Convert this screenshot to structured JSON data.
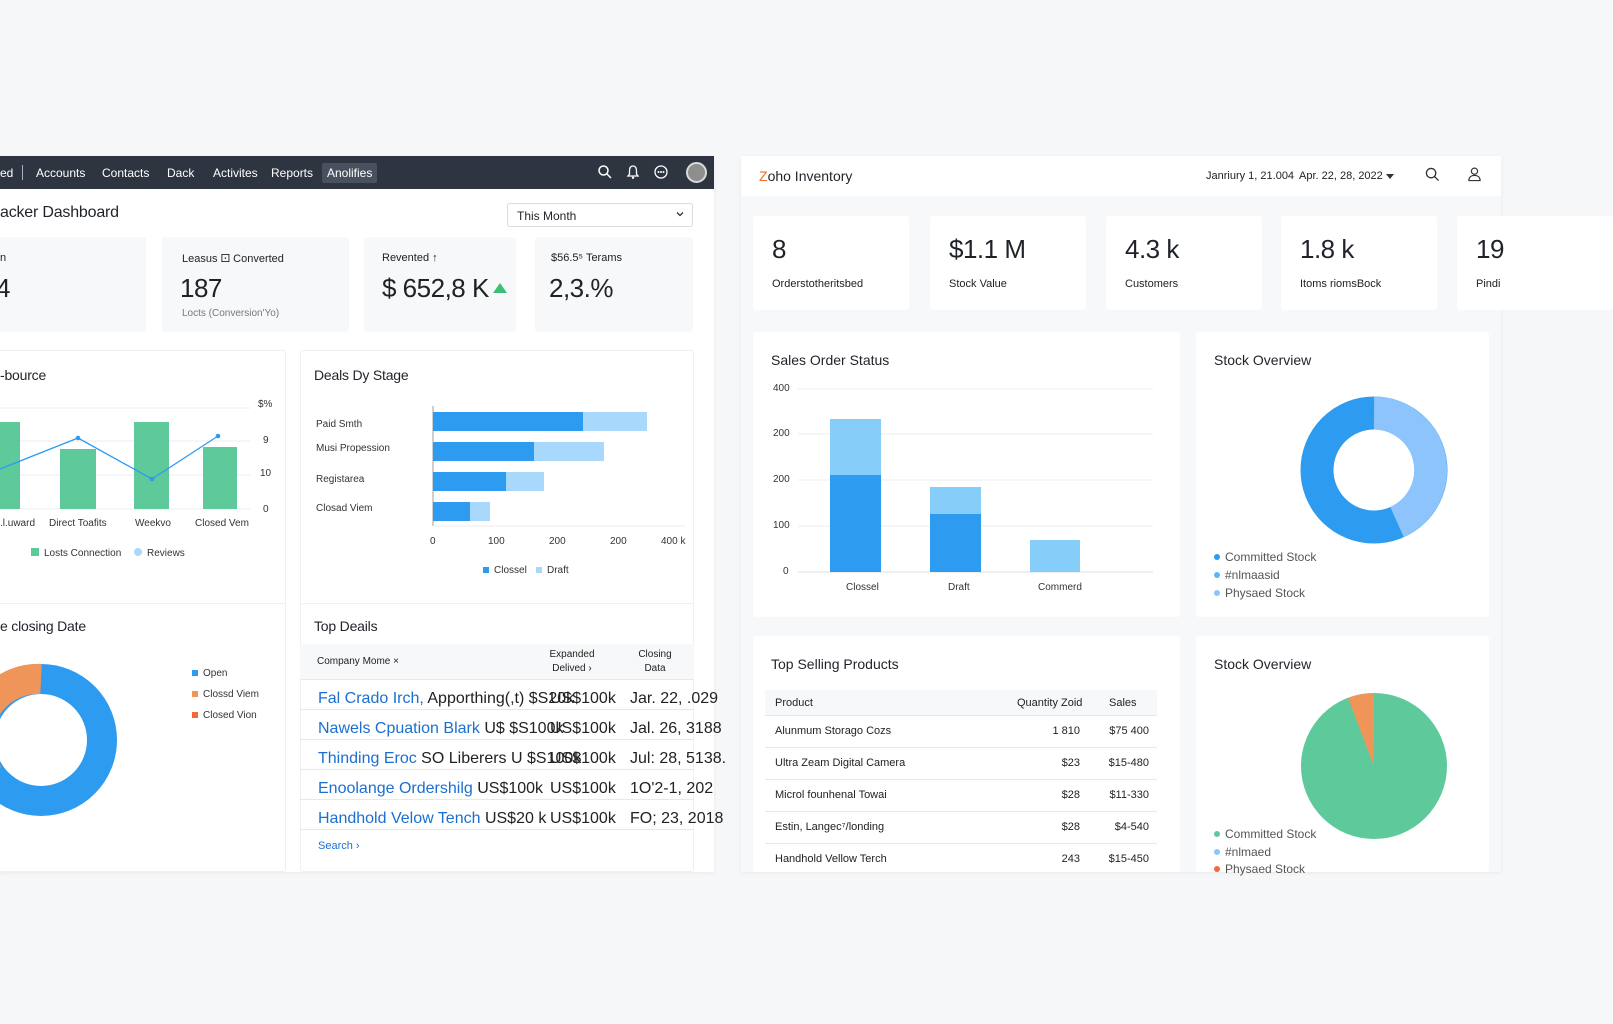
{
  "crm": {
    "nav": {
      "partial_item": "ed",
      "items": [
        "Accounts",
        "Contacts",
        "Dack",
        "Activites",
        "Reports",
        "Anolifies"
      ],
      "active_item": "Anolifies"
    },
    "title": "acker Dashboard",
    "period_select": "This Month",
    "kpis": [
      {
        "label": "n",
        "value": "4",
        "sub": ""
      },
      {
        "label": "Leasus ⚀ Converted",
        "value": "187",
        "sub": "Locts (Conversion'Yo)"
      },
      {
        "label": "Revented ↑",
        "value": "$ 652,8 K",
        "sub": ""
      },
      {
        "label": "$56.5⁵ Terams",
        "value": "2,3.%",
        "sub": ""
      }
    ],
    "source_panel": {
      "title": "-bource",
      "axis_right": [
        "$%",
        "9",
        "10",
        "0"
      ],
      "categories": [
        ".l.uward",
        "Direct Toafits",
        "Weekvo",
        "Closed Vem"
      ],
      "legend": [
        "Losts Connection",
        "Reviews"
      ]
    },
    "deals_stage_panel": {
      "title": "Deals Dy Stage",
      "stages": [
        "Paid Smth",
        "Musi Propession",
        "Registarea",
        "Closad Viem"
      ],
      "x_ticks": [
        "0",
        "100",
        "200",
        "200",
        "400 k"
      ],
      "legend": [
        "Clossel",
        "Draft"
      ]
    },
    "closing_panel": {
      "title": "e closing Date",
      "legend": [
        "Open",
        "Clossd Viem",
        "Closed Vion"
      ]
    },
    "top_deals": {
      "title": "Top Deails",
      "headers": [
        "Company Mome ×",
        "Expanded Delived ›",
        "Closing Data"
      ],
      "rows": [
        {
          "name": "Fal Crado Irch,",
          "extra": "Apporthing(,t)  $S20k",
          "value": "US$100k",
          "date": "Jar. 22, .029"
        },
        {
          "name": "Nawels Cpuation Blark",
          "extra": "U$ $S100k",
          "value": "US$100k",
          "date": "Jal. 26, 3188"
        },
        {
          "name": "Thinding Eroc",
          "extra": "SO Liberers      U $S100k",
          "value": "US$100k",
          "date": "Jul: 28, 5138."
        },
        {
          "name": "Enoolange Ordershilg",
          "extra": "US$100k",
          "value": "US$100k",
          "date": "1O'2-1, 202"
        },
        {
          "name": "Handhold Velow Tench",
          "extra": "US$20 k",
          "value": "US$100k",
          "date": "FO; 23, 2018"
        }
      ],
      "search_link": "Search ›"
    }
  },
  "inventory": {
    "logo_prefix": "Z",
    "logo_rest": "oho Inventory",
    "date_from": "Janriury 1, 21.004",
    "date_to": "Apr. 22, 28, 2022",
    "cards": [
      {
        "value": "8",
        "label": "Orderstotheritsbed"
      },
      {
        "value": "$1.1 M",
        "label": "Stock Value"
      },
      {
        "value": "4.3 k",
        "label": "Customers"
      },
      {
        "value": "1.8 k",
        "label": "Itoms riomsBock"
      },
      {
        "value": "19",
        "label": "Pindi"
      }
    ],
    "sales_status": {
      "title": "Sales Order Status",
      "y_ticks": [
        "400",
        "200",
        "200",
        "100",
        "0"
      ],
      "categories": [
        "Clossel",
        "Draft",
        "Commerd"
      ]
    },
    "stock_overview_1": {
      "title": "Stock Overview",
      "legend": [
        "Committed Stock",
        "#nlmaasid",
        "Physaed Stock"
      ]
    },
    "top_selling": {
      "title": "Top Selling Products",
      "headers": [
        "Product",
        "Quantity Zoid",
        "Sales"
      ],
      "rows": [
        {
          "product": "Alunmum Storago Cozs",
          "qty": "1 810",
          "sales": "$75 400"
        },
        {
          "product": "Ultra Zeam Digital Camera",
          "qty": "$23",
          "sales": "$15-480"
        },
        {
          "product": "Microl founhenal Towai",
          "qty": "$28",
          "sales": "$11-330"
        },
        {
          "product": "Estin, Langec⁷/londing",
          "qty": "$28",
          "sales": "$4-540"
        },
        {
          "product": "Handhold Vellow Terch",
          "qty": "243",
          "sales": "$15-450"
        }
      ]
    },
    "stock_overview_2": {
      "title": "Stock Overview",
      "legend": [
        "Committed Stock",
        "#nlmaed",
        "Physaed Stock"
      ]
    }
  },
  "colors": {
    "nav_bg": "#2f3540",
    "green": "#5ec99a",
    "blue": "#2d9bf0",
    "light_blue": "#a8d8fb",
    "orange": "#f0955a"
  }
}
